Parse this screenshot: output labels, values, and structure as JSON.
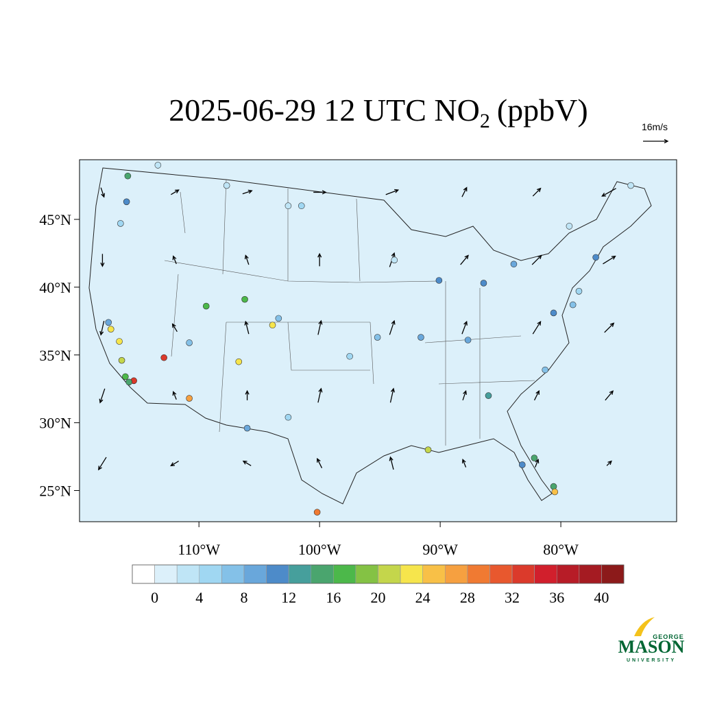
{
  "map": {
    "title": "2025-06-29 12 UTC NO",
    "title_subscript": "2",
    "title_suffix": "(ppbV)",
    "xlim": [
      -119.9,
      -70.4
    ],
    "ylim": [
      22.7,
      49.4
    ],
    "yticks": [
      {
        "value": 45,
        "label": "45°N"
      },
      {
        "value": 40,
        "label": "40°N"
      },
      {
        "value": 35,
        "label": "35°N"
      },
      {
        "value": 30,
        "label": "30°N"
      },
      {
        "value": 25,
        "label": "25°N"
      }
    ],
    "xticks": [
      {
        "value": -110,
        "label": "110°W"
      },
      {
        "value": -100,
        "label": "100°W"
      },
      {
        "value": -90,
        "label": "90°W"
      },
      {
        "value": -80,
        "label": "80°W"
      }
    ],
    "background_color": "#dcf0fa",
    "colorbar": {
      "levels": [
        0,
        2,
        4,
        6,
        8,
        10,
        12,
        14,
        16,
        18,
        20,
        22,
        24,
        26,
        28,
        30,
        32,
        34,
        36,
        38,
        40
      ],
      "colors": [
        "#ffffff",
        "#dcf0fa",
        "#bfe5f6",
        "#a0d7f2",
        "#84c1e8",
        "#69a7db",
        "#4d8bc9",
        "#469f9c",
        "#4aa56e",
        "#4cb84a",
        "#84c244",
        "#c4d64b",
        "#f6e54c",
        "#f8c047",
        "#f6a040",
        "#f07a32",
        "#e8582e",
        "#db3a2b",
        "#d11f2c",
        "#b71c27",
        "#a51b22",
        "#8c1a1a"
      ],
      "ticks": [
        0,
        4,
        8,
        12,
        16,
        20,
        24,
        28,
        32,
        36,
        40
      ]
    },
    "stations": {
      "lon": [
        -115.9,
        -116.0,
        -116.5,
        -117.5,
        -117.3,
        -116.6,
        -116.4,
        -116.1,
        -115.4,
        -115.8,
        -112.9,
        -110.8,
        -110.8,
        -109.4,
        -106.2,
        -106.7,
        -103.9,
        -103.4,
        -106.0,
        -101.5,
        -97.5,
        -95.2,
        -91.6,
        -90.1,
        -87.7,
        -86.4,
        -83.9,
        -80.6,
        -86.0,
        -83.2,
        -82.2,
        -80.6,
        -80.5,
        -91.0,
        -81.3,
        -79.0,
        -78.5,
        -77.1,
        -79.3,
        -74.2,
        -113.4,
        -107.7,
        -102.6,
        -93.8,
        -102.6,
        -100.2
      ],
      "lat": [
        48.2,
        46.3,
        44.7,
        37.4,
        36.9,
        36.0,
        34.6,
        33.4,
        33.1,
        33.0,
        34.8,
        35.9,
        31.8,
        38.6,
        39.1,
        34.5,
        37.2,
        37.7,
        29.6,
        46.0,
        34.9,
        36.3,
        36.3,
        40.5,
        36.1,
        40.3,
        41.7,
        38.1,
        32.0,
        26.9,
        27.4,
        25.3,
        24.9,
        28.0,
        33.9,
        38.7,
        39.7,
        42.2,
        44.5,
        47.5,
        49.0,
        47.5,
        46.0,
        42.0,
        30.4,
        23.4
      ],
      "values": [
        14,
        10,
        4,
        8,
        22,
        22,
        20,
        16,
        32,
        14,
        32,
        6,
        26,
        16,
        16,
        22,
        22,
        6,
        8,
        4,
        4,
        6,
        8,
        10,
        8,
        10,
        8,
        10,
        12,
        10,
        14,
        14,
        24,
        20,
        6,
        6,
        4,
        10,
        3,
        2,
        2,
        3,
        3,
        3,
        4,
        28
      ]
    },
    "wind": {
      "reference_label": "16m/s",
      "reference": 16,
      "lons": [
        -118,
        -112,
        -106,
        -100,
        -94,
        -88,
        -82,
        -76
      ],
      "lats": [
        47,
        42,
        37,
        32,
        27
      ],
      "u": [
        [
          2,
          5,
          6,
          8,
          8,
          3,
          5,
          -9
        ],
        [
          0,
          -2,
          -2,
          0,
          3,
          5,
          6,
          8
        ],
        [
          -2,
          -3,
          -2,
          2,
          3,
          3,
          5,
          6
        ],
        [
          -3,
          -2,
          0,
          2,
          2,
          2,
          3,
          5
        ],
        [
          -5,
          -5,
          -5,
          -3,
          -2,
          -2,
          2,
          3
        ]
      ],
      "v": [
        [
          -6,
          3,
          2,
          0,
          3,
          6,
          5,
          -5
        ],
        [
          -8,
          5,
          6,
          8,
          9,
          6,
          6,
          5
        ],
        [
          -9,
          5,
          8,
          9,
          9,
          8,
          8,
          6
        ],
        [
          -9,
          5,
          6,
          9,
          9,
          6,
          6,
          6
        ],
        [
          -8,
          -3,
          3,
          6,
          8,
          5,
          5,
          3
        ]
      ]
    },
    "logo": {
      "top": "GEORGE",
      "main": "MASON",
      "bottom": "UNIVERSITY"
    }
  }
}
